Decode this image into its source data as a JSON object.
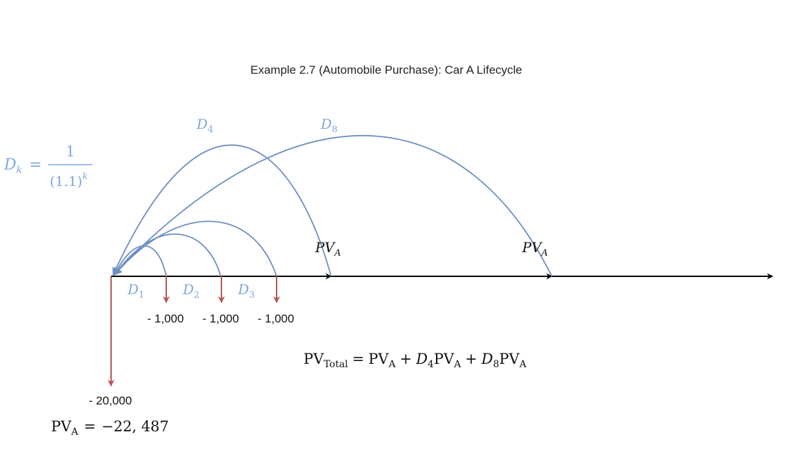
{
  "title": "Example 2.7 (Automobile Purchase): Car A Lifecycle",
  "colors": {
    "axis": "#000000",
    "arc": "#6c8ebf",
    "cash_arrow": "#b85450",
    "label_blue": "#7ea6e0",
    "text": "#111111"
  },
  "discount_formula": {
    "lhs_var": "D",
    "lhs_sub": "k",
    "equals": "=",
    "numerator": "1",
    "denominator_base": "(1.1)",
    "denominator_exp": "k"
  },
  "discount_labels": [
    {
      "var": "D",
      "sub": "1"
    },
    {
      "var": "D",
      "sub": "2"
    },
    {
      "var": "D",
      "sub": "3"
    },
    {
      "var": "D",
      "sub": "4"
    },
    {
      "var": "D",
      "sub": "8"
    }
  ],
  "pv_markers": [
    {
      "var": "PV",
      "sub": "A"
    },
    {
      "var": "PV",
      "sub": "A"
    }
  ],
  "cash_flows": [
    {
      "label": "- 20,000"
    },
    {
      "label": "- 1,000"
    },
    {
      "label": "- 1,000"
    },
    {
      "label": "- 1,000"
    }
  ],
  "pv_total_formula": {
    "pv": "PV",
    "total_sub": "Total",
    "eq": "=",
    "a_sub": "A",
    "plus": "+",
    "d": "D",
    "d4_sub": "4",
    "d8_sub": "8"
  },
  "pv_a_result": {
    "pv": "PV",
    "sub": "A",
    "eq": "=",
    "value": "−22, 487"
  }
}
